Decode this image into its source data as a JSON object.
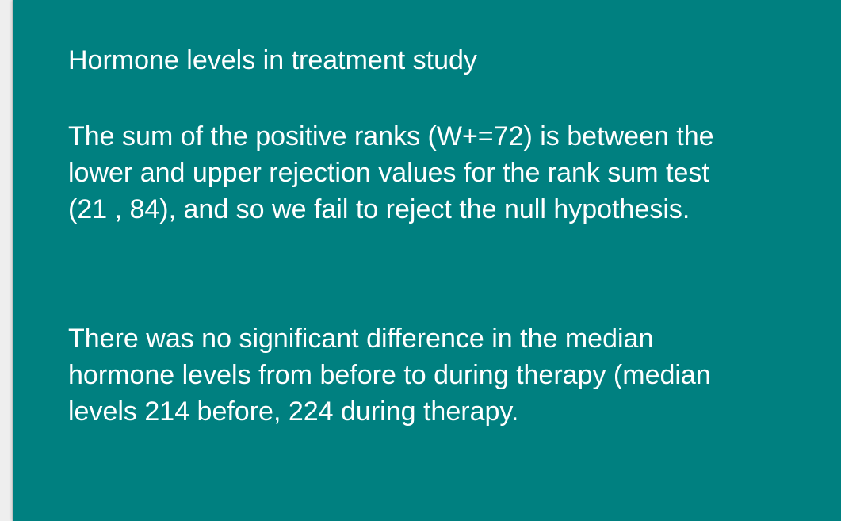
{
  "slide": {
    "title": "Hormone levels in treatment study",
    "paragraph_1": "The sum of the positive ranks (W+=72) is between the\nlower and upper rejection values for the rank sum test\n(21 , 84), and so we fail to reject the null hypothesis.",
    "paragraph_2": "There was no significant difference in the median\nhormone levels from before to during therapy (median\nlevels 214 before, 224 during therapy."
  },
  "colors": {
    "slide_background": "#008080",
    "text": "#ffffff"
  }
}
